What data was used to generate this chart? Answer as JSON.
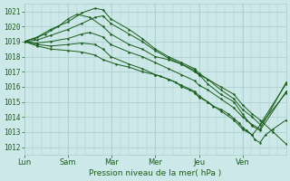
{
  "bg_color": "#cce8e8",
  "grid_color": "#aacccc",
  "line_color": "#1a5c1a",
  "dot_color": "#1a5c1a",
  "xlabel": "Pression niveau de la mer( hPa )",
  "xtick_labels": [
    "Lun",
    "Sam",
    "Mar",
    "Mer",
    "Jeu",
    "Ven"
  ],
  "xtick_positions": [
    0.0,
    0.167,
    0.333,
    0.5,
    0.667,
    0.833
  ],
  "ylim": [
    1011.5,
    1021.5
  ],
  "yticks": [
    1012,
    1013,
    1014,
    1015,
    1016,
    1017,
    1018,
    1019,
    1020,
    1021
  ],
  "xlim": [
    0.0,
    1.0
  ],
  "curves": [
    {
      "x": [
        0.0,
        0.04,
        0.08,
        0.13,
        0.167,
        0.2,
        0.25,
        0.3,
        0.33,
        0.4,
        0.45,
        0.5,
        0.55,
        0.6,
        0.65,
        0.667,
        0.7,
        0.75,
        0.8,
        0.833,
        0.87,
        0.9,
        0.95,
        1.0
      ],
      "y": [
        1019.0,
        1019.2,
        1019.5,
        1020.0,
        1020.5,
        1020.8,
        1020.6,
        1020.0,
        1019.5,
        1018.8,
        1018.5,
        1018.0,
        1017.8,
        1017.5,
        1017.0,
        1016.8,
        1016.5,
        1016.0,
        1015.5,
        1014.8,
        1014.2,
        1013.8,
        1013.0,
        1012.2
      ]
    },
    {
      "x": [
        0.0,
        0.05,
        0.1,
        0.167,
        0.22,
        0.27,
        0.3,
        0.33,
        0.4,
        0.45,
        0.5,
        0.55,
        0.6,
        0.65,
        0.667,
        0.7,
        0.75,
        0.8,
        0.833,
        0.87,
        0.9,
        1.0
      ],
      "y": [
        1019.0,
        1019.3,
        1019.8,
        1020.3,
        1020.9,
        1021.2,
        1021.1,
        1020.5,
        1019.8,
        1019.2,
        1018.5,
        1018.0,
        1017.6,
        1017.2,
        1016.9,
        1016.5,
        1015.8,
        1015.2,
        1014.5,
        1014.0,
        1013.5,
        1016.2
      ]
    },
    {
      "x": [
        0.0,
        0.05,
        0.1,
        0.167,
        0.22,
        0.27,
        0.3,
        0.33,
        0.4,
        0.45,
        0.5,
        0.55,
        0.6,
        0.65,
        0.667,
        0.7,
        0.75,
        0.8,
        0.833,
        0.85,
        0.87,
        0.9,
        1.0
      ],
      "y": [
        1019.0,
        1019.1,
        1019.4,
        1019.8,
        1020.2,
        1020.6,
        1020.7,
        1020.2,
        1019.5,
        1019.0,
        1018.4,
        1017.9,
        1017.5,
        1017.1,
        1016.8,
        1016.2,
        1015.5,
        1015.0,
        1014.2,
        1013.8,
        1013.4,
        1013.1,
        1015.7
      ]
    },
    {
      "x": [
        0.0,
        0.05,
        0.1,
        0.167,
        0.22,
        0.25,
        0.3,
        0.33,
        0.4,
        0.45,
        0.5,
        0.55,
        0.6,
        0.65,
        0.667,
        0.7,
        0.75,
        0.8,
        0.833,
        0.87,
        0.9,
        1.0
      ],
      "y": [
        1019.0,
        1018.9,
        1019.0,
        1019.2,
        1019.5,
        1019.6,
        1019.3,
        1018.8,
        1018.3,
        1018.0,
        1017.6,
        1017.2,
        1016.8,
        1016.4,
        1016.1,
        1015.8,
        1015.2,
        1014.6,
        1014.0,
        1013.5,
        1013.2,
        1016.3
      ]
    },
    {
      "x": [
        0.0,
        0.05,
        0.1,
        0.167,
        0.22,
        0.27,
        0.3,
        0.33,
        0.4,
        0.45,
        0.5,
        0.55,
        0.6,
        0.65,
        0.667,
        0.7,
        0.75,
        0.8,
        0.833,
        0.87,
        1.0
      ],
      "y": [
        1019.0,
        1018.8,
        1018.7,
        1018.8,
        1018.9,
        1018.8,
        1018.5,
        1018.0,
        1017.5,
        1017.2,
        1016.8,
        1016.5,
        1016.1,
        1015.7,
        1015.4,
        1015.0,
        1014.4,
        1013.8,
        1013.2,
        1012.8,
        1015.6
      ]
    },
    {
      "x": [
        0.0,
        0.05,
        0.1,
        0.167,
        0.22,
        0.27,
        0.3,
        0.35,
        0.4,
        0.45,
        0.5,
        0.52,
        0.55,
        0.58,
        0.6,
        0.63,
        0.65,
        0.667,
        0.7,
        0.72,
        0.75,
        0.78,
        0.8,
        0.82,
        0.833,
        0.85,
        0.87,
        0.88,
        0.9,
        0.92,
        0.95,
        1.0
      ],
      "y": [
        1019.0,
        1018.7,
        1018.5,
        1018.4,
        1018.3,
        1018.1,
        1017.8,
        1017.5,
        1017.3,
        1017.0,
        1016.8,
        1016.7,
        1016.5,
        1016.3,
        1016.0,
        1015.8,
        1015.6,
        1015.3,
        1015.0,
        1014.7,
        1014.5,
        1014.2,
        1013.9,
        1013.6,
        1013.3,
        1013.1,
        1012.8,
        1012.5,
        1012.3,
        1012.8,
        1013.2,
        1013.8
      ]
    }
  ]
}
